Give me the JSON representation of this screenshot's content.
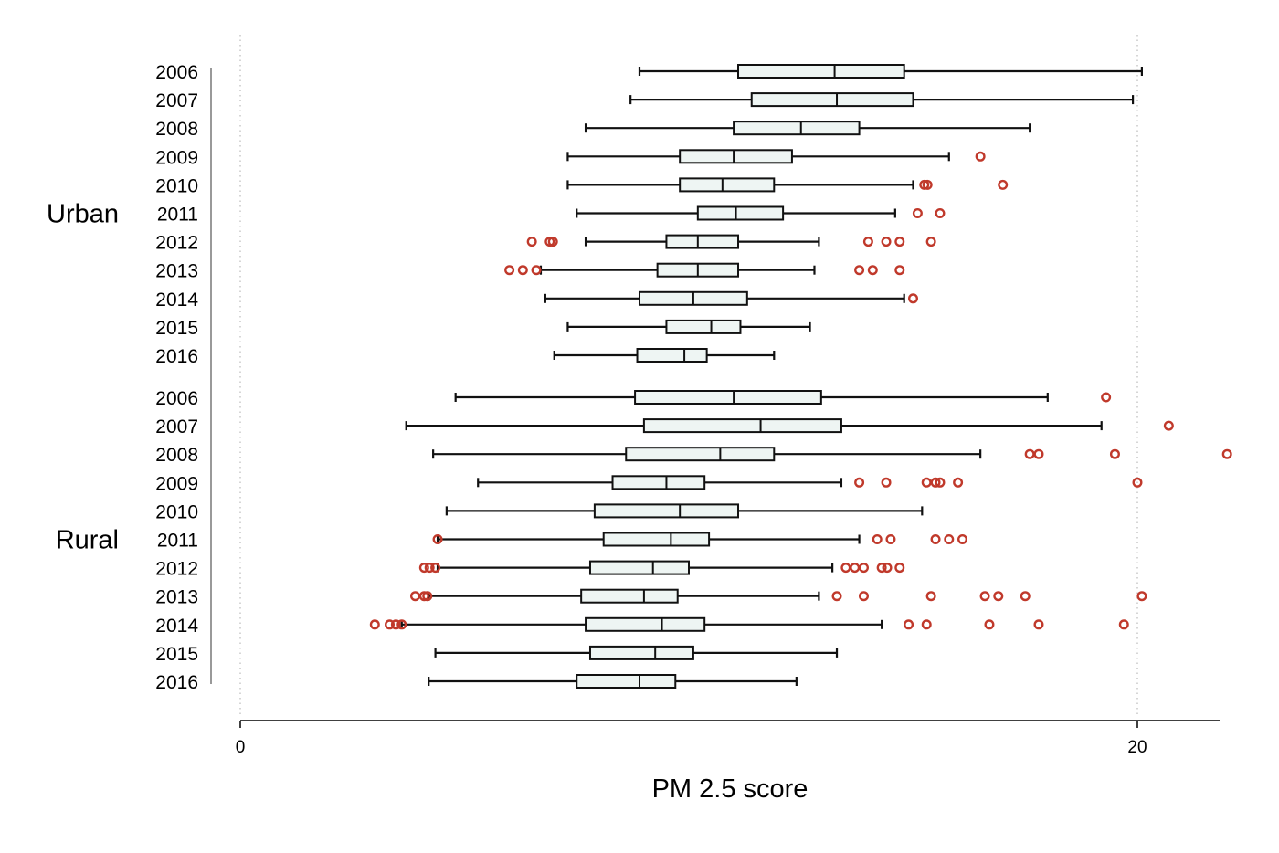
{
  "chart_data": {
    "type": "boxplot",
    "orientation": "horizontal",
    "title": "",
    "xlabel": "PM 2.5 score",
    "xlim": [
      0,
      22
    ],
    "xticks": [
      0,
      20
    ],
    "grid": "dotted vertical lines at ticks",
    "colors": {
      "box_fill": "#eef5f3",
      "box_stroke": "#111111",
      "outlier": "#c0392b"
    },
    "groups": [
      {
        "name": "Urban",
        "series": [
          {
            "year": "2006",
            "whisker_low": 8.9,
            "q1": 11.1,
            "median": 13.25,
            "q3": 14.8,
            "whisker_high": 20.1,
            "outliers": []
          },
          {
            "year": "2007",
            "whisker_low": 8.7,
            "q1": 11.4,
            "median": 13.3,
            "q3": 15.0,
            "whisker_high": 19.9,
            "outliers": []
          },
          {
            "year": "2008",
            "whisker_low": 7.7,
            "q1": 11.0,
            "median": 12.5,
            "q3": 13.8,
            "whisker_high": 17.6,
            "outliers": []
          },
          {
            "year": "2009",
            "whisker_low": 7.3,
            "q1": 9.8,
            "median": 11.0,
            "q3": 12.3,
            "whisker_high": 15.8,
            "outliers": [
              16.5
            ]
          },
          {
            "year": "2010",
            "whisker_low": 7.3,
            "q1": 9.8,
            "median": 10.75,
            "q3": 11.9,
            "whisker_high": 15.0,
            "outliers": [
              15.25,
              15.32,
              17.0
            ]
          },
          {
            "year": "2011",
            "whisker_low": 7.5,
            "q1": 10.2,
            "median": 11.05,
            "q3": 12.1,
            "whisker_high": 14.6,
            "outliers": [
              15.1,
              15.6
            ]
          },
          {
            "year": "2012",
            "whisker_low": 7.7,
            "q1": 9.5,
            "median": 10.2,
            "q3": 11.1,
            "whisker_high": 12.9,
            "outliers": [
              6.5,
              6.9,
              6.97,
              14.0,
              14.4,
              14.7,
              15.4
            ]
          },
          {
            "year": "2013",
            "whisker_low": 6.7,
            "q1": 9.3,
            "median": 10.2,
            "q3": 11.1,
            "whisker_high": 12.8,
            "outliers": [
              6.0,
              6.3,
              6.6,
              13.8,
              14.1,
              14.7
            ]
          },
          {
            "year": "2014",
            "whisker_low": 6.8,
            "q1": 8.9,
            "median": 10.1,
            "q3": 11.3,
            "whisker_high": 14.8,
            "outliers": [
              15.0
            ]
          },
          {
            "year": "2015",
            "whisker_low": 7.3,
            "q1": 9.5,
            "median": 10.5,
            "q3": 11.15,
            "whisker_high": 12.7,
            "outliers": []
          },
          {
            "year": "2016",
            "whisker_low": 7.0,
            "q1": 8.85,
            "median": 9.9,
            "q3": 10.4,
            "whisker_high": 11.9,
            "outliers": []
          }
        ]
      },
      {
        "name": "Rural",
        "series": [
          {
            "year": "2006",
            "whisker_low": 4.8,
            "q1": 8.8,
            "median": 11.0,
            "q3": 12.95,
            "whisker_high": 18.0,
            "outliers": [
              19.3
            ]
          },
          {
            "year": "2007",
            "whisker_low": 3.7,
            "q1": 9.0,
            "median": 11.6,
            "q3": 13.4,
            "whisker_high": 19.2,
            "outliers": [
              20.7
            ]
          },
          {
            "year": "2008",
            "whisker_low": 4.3,
            "q1": 8.6,
            "median": 10.7,
            "q3": 11.9,
            "whisker_high": 16.5,
            "outliers": [
              17.6,
              17.8,
              19.5,
              22.0
            ]
          },
          {
            "year": "2009",
            "whisker_low": 5.3,
            "q1": 8.3,
            "median": 9.5,
            "q3": 10.35,
            "whisker_high": 13.4,
            "outliers": [
              13.8,
              14.4,
              15.3,
              15.5,
              15.6,
              16.0,
              20.0
            ]
          },
          {
            "year": "2010",
            "whisker_low": 4.6,
            "q1": 7.9,
            "median": 9.8,
            "q3": 11.1,
            "whisker_high": 15.2,
            "outliers": []
          },
          {
            "year": "2011",
            "whisker_low": 4.4,
            "q1": 8.1,
            "median": 9.6,
            "q3": 10.45,
            "whisker_high": 13.8,
            "outliers": [
              4.4,
              14.2,
              14.5,
              15.5,
              15.8,
              16.1
            ]
          },
          {
            "year": "2012",
            "whisker_low": 4.4,
            "q1": 7.8,
            "median": 9.2,
            "q3": 10.0,
            "whisker_high": 13.2,
            "outliers": [
              4.1,
              4.22,
              4.35,
              13.5,
              13.7,
              13.9,
              14.3,
              14.42,
              14.7
            ]
          },
          {
            "year": "2013",
            "whisker_low": 4.2,
            "q1": 7.6,
            "median": 9.0,
            "q3": 9.75,
            "whisker_high": 12.9,
            "outliers": [
              3.9,
              4.1,
              4.17,
              13.3,
              13.9,
              15.4,
              16.6,
              16.9,
              17.5,
              20.1
            ]
          },
          {
            "year": "2014",
            "whisker_low": 3.6,
            "q1": 7.7,
            "median": 9.4,
            "q3": 10.35,
            "whisker_high": 14.3,
            "outliers": [
              3.0,
              3.33,
              3.47,
              3.6,
              14.9,
              15.3,
              16.7,
              17.8,
              19.7
            ]
          },
          {
            "year": "2015",
            "whisker_low": 4.35,
            "q1": 7.8,
            "median": 9.25,
            "q3": 10.1,
            "whisker_high": 13.3,
            "outliers": []
          },
          {
            "year": "2016",
            "whisker_low": 4.2,
            "q1": 7.5,
            "median": 8.9,
            "q3": 9.7,
            "whisker_high": 12.4,
            "outliers": []
          }
        ]
      }
    ]
  }
}
